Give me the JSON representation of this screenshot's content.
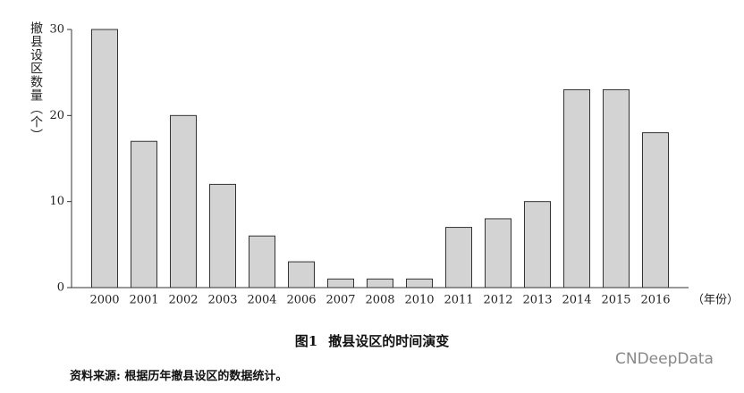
{
  "chart_data": {
    "type": "bar",
    "y_label": "撤县设区数量（个）",
    "x_label": "（年份）",
    "figure_label": "图1",
    "title": "撤县设区的时间演变",
    "source": "资料来源: 根据历年撤县设区的数据统计。",
    "watermark": "CNDeepData",
    "categories": [
      "2000",
      "2001",
      "2002",
      "2003",
      "2004",
      "2006",
      "2007",
      "2008",
      "2010",
      "2011",
      "2012",
      "2013",
      "2014",
      "2015",
      "2016"
    ],
    "values": [
      30,
      17,
      20,
      12,
      6,
      3,
      1,
      1,
      1,
      7,
      8,
      10,
      23,
      23,
      18
    ],
    "color": "#d3d3d3",
    "ylim": [
      0,
      30
    ],
    "yticks": [
      0,
      10,
      20,
      30
    ],
    "grid": false
  }
}
